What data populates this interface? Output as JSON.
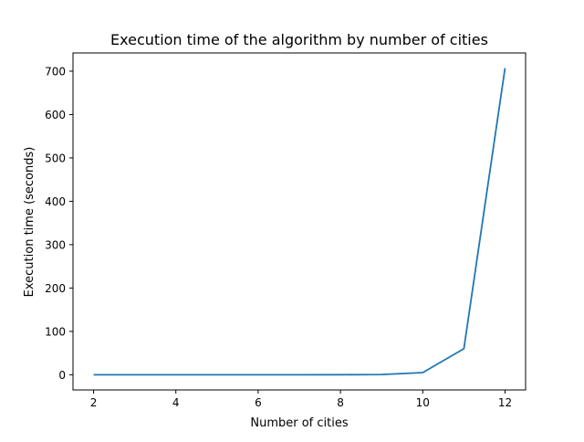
{
  "chart_data": {
    "type": "line",
    "title": "Execution time of the algorithm by number of cities",
    "xlabel": "Number of cities",
    "ylabel": "Execution time (seconds)",
    "xlim": [
      1.5,
      12.5
    ],
    "ylim": [
      -35,
      742
    ],
    "x_ticks": [
      2,
      4,
      6,
      8,
      10,
      12
    ],
    "y_ticks": [
      0,
      100,
      200,
      300,
      400,
      500,
      600,
      700
    ],
    "grid": false,
    "series": [
      {
        "color": "#1f77b4",
        "x": [
          2,
          3,
          4,
          5,
          6,
          7,
          8,
          9,
          10,
          11,
          12
        ],
        "y": [
          0,
          0,
          0,
          0,
          0,
          0,
          0.1,
          0.6,
          5,
          60,
          707
        ]
      }
    ]
  }
}
